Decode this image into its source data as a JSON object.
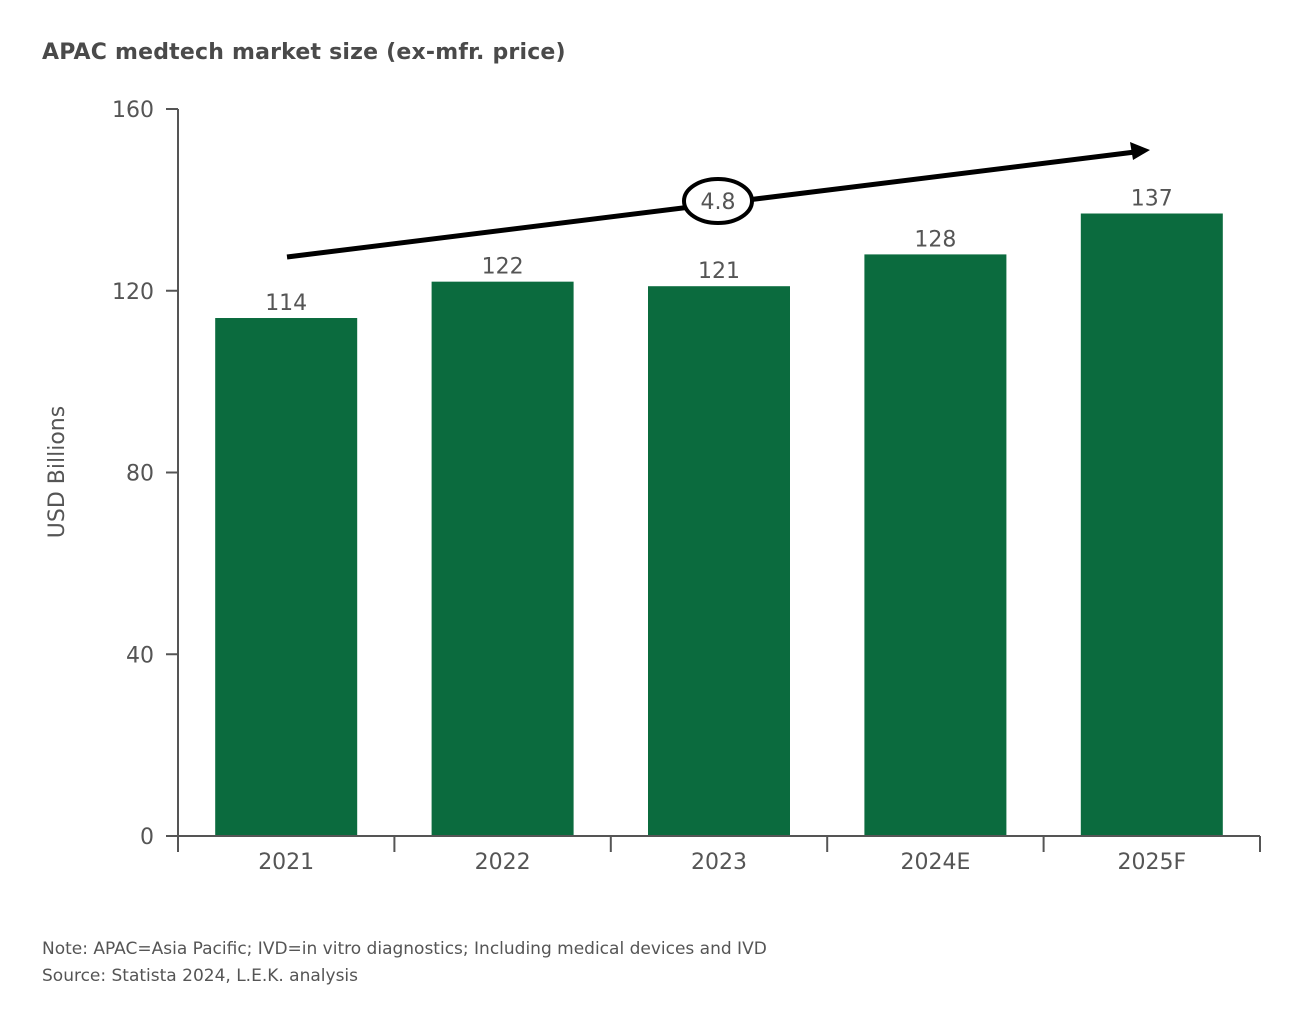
{
  "chart_data": {
    "type": "bar",
    "title": "APAC medtech market size (ex-mfr. price)",
    "xlabel": "",
    "ylabel": "USD Billions",
    "categories": [
      "2021",
      "2022",
      "2023",
      "2024E",
      "2025F"
    ],
    "values": [
      114,
      122,
      121,
      128,
      137
    ],
    "data_labels": [
      "114",
      "122",
      "121",
      "128",
      "137"
    ],
    "ylim": [
      0,
      160
    ],
    "yticks": [
      0,
      40,
      80,
      120,
      160
    ],
    "ytick_labels": [
      "0",
      "40",
      "80",
      "120",
      "160"
    ],
    "grid": false,
    "bar_color": "#0b6b3e",
    "annotation": {
      "label": "4.8",
      "type": "trend-arrow"
    }
  },
  "notes": {
    "note": "Note: APAC=Asia Pacific; IVD=in vitro diagnostics; Including medical devices and IVD",
    "source": "Source: Statista 2024, L.E.K. analysis"
  }
}
